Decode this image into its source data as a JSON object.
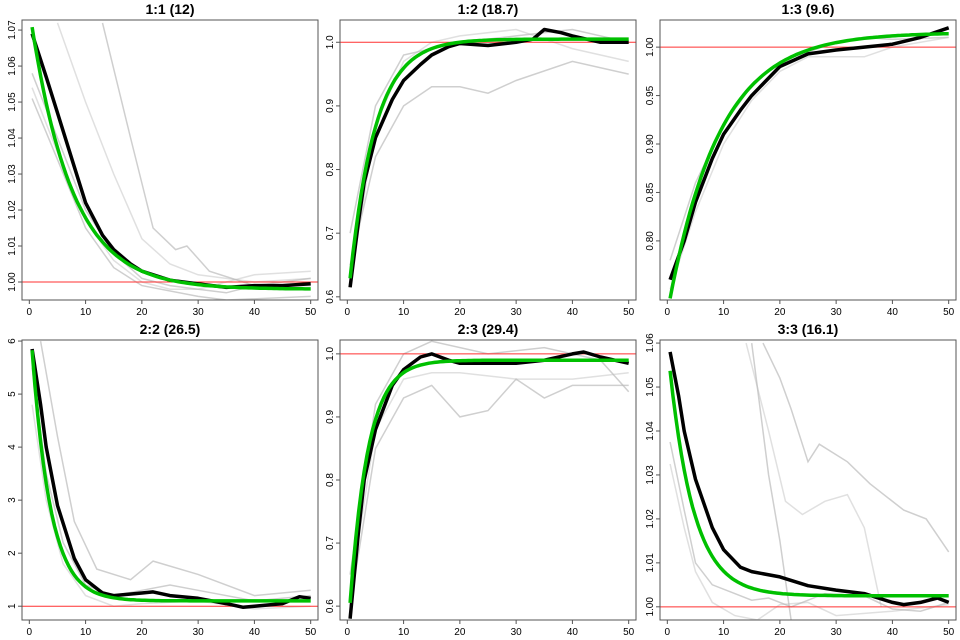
{
  "chart_data": [
    {
      "type": "line",
      "title": "1:1 (12)",
      "xlim": [
        -1.3,
        51.3
      ],
      "ylim": [
        0.995,
        1.0728
      ],
      "xticks": [
        0,
        10,
        20,
        30,
        40,
        50
      ],
      "yticks": [
        "1.00",
        "1.01",
        "1.02",
        "1.03",
        "1.04",
        "1.05",
        "1.06",
        "1.07"
      ],
      "reference": 1.0,
      "observed": [
        [
          0.5,
          1.069
        ],
        [
          3,
          1.057
        ],
        [
          5,
          1.047
        ],
        [
          8,
          1.032
        ],
        [
          10,
          1.022
        ],
        [
          13,
          1.013
        ],
        [
          15,
          1.009
        ],
        [
          18,
          1.005
        ],
        [
          20,
          1.003
        ],
        [
          25,
          1.0005
        ],
        [
          30,
          0.9995
        ],
        [
          35,
          0.9985
        ],
        [
          40,
          0.999
        ],
        [
          45,
          0.999
        ],
        [
          50,
          0.9995
        ]
      ],
      "fit": {
        "asymptote": 0.998,
        "amplitude": 0.078,
        "tau": 7.3
      },
      "replicates": [
        [
          [
            0.5,
            1.058
          ],
          [
            5,
            1.04
          ],
          [
            10,
            1.02
          ],
          [
            15,
            1.008
          ],
          [
            20,
            1.001
          ],
          [
            25,
            0.999
          ],
          [
            30,
            0.998
          ],
          [
            35,
            0.997
          ],
          [
            40,
            0.999
          ],
          [
            50,
            1.001
          ]
        ],
        [
          [
            0.5,
            1.054
          ],
          [
            5,
            1.036
          ],
          [
            10,
            1.017
          ],
          [
            15,
            1.006
          ],
          [
            20,
            1.0
          ],
          [
            25,
            0.998
          ],
          [
            30,
            0.998
          ],
          [
            40,
            1.002
          ],
          [
            50,
            1.003
          ]
        ],
        [
          [
            0.5,
            1.051
          ],
          [
            5,
            1.034
          ],
          [
            10,
            1.015
          ],
          [
            15,
            1.004
          ],
          [
            20,
            0.999
          ],
          [
            30,
            0.996
          ],
          [
            35,
            0.995
          ],
          [
            50,
            0.996
          ]
        ],
        [
          [
            5,
            1.072
          ],
          [
            10,
            1.05
          ],
          [
            15,
            1.03
          ],
          [
            20,
            1.012
          ],
          [
            25,
            1.005
          ],
          [
            30,
            1.002
          ],
          [
            40,
            1.0
          ],
          [
            50,
            1.001
          ]
        ],
        [
          [
            13,
            1.072
          ],
          [
            18,
            1.04
          ],
          [
            22,
            1.015
          ],
          [
            26,
            1.009
          ],
          [
            28,
            1.01
          ],
          [
            32,
            1.003
          ],
          [
            40,
            0.999
          ],
          [
            50,
            0.999
          ]
        ]
      ]
    },
    {
      "type": "line",
      "title": "1:2 (18.7)",
      "xlim": [
        -1.3,
        51.3
      ],
      "ylim": [
        0.595,
        1.035
      ],
      "xticks": [
        0,
        10,
        20,
        30,
        40,
        50
      ],
      "yticks": [
        "0.6",
        "0.7",
        "0.8",
        "0.9",
        "1.0"
      ],
      "reference": 1.0,
      "observed": [
        [
          0.5,
          0.615
        ],
        [
          2,
          0.72
        ],
        [
          3,
          0.78
        ],
        [
          5,
          0.85
        ],
        [
          8,
          0.91
        ],
        [
          10,
          0.94
        ],
        [
          13,
          0.965
        ],
        [
          15,
          0.98
        ],
        [
          18,
          0.993
        ],
        [
          20,
          0.998
        ],
        [
          25,
          0.995
        ],
        [
          30,
          1.0
        ],
        [
          33,
          1.005
        ],
        [
          35,
          1.02
        ],
        [
          38,
          1.015
        ],
        [
          40,
          1.01
        ],
        [
          45,
          1.0
        ],
        [
          50,
          1.0
        ]
      ],
      "fit": {
        "asymptote": 1.005,
        "amplitude": -0.42,
        "tau": 4.5
      },
      "replicates": [
        [
          [
            0.5,
            0.65
          ],
          [
            5,
            0.82
          ],
          [
            10,
            0.9
          ],
          [
            15,
            0.93
          ],
          [
            20,
            0.93
          ],
          [
            25,
            0.92
          ],
          [
            30,
            0.94
          ],
          [
            40,
            0.97
          ],
          [
            50,
            0.95
          ]
        ],
        [
          [
            0.5,
            0.62
          ],
          [
            5,
            0.87
          ],
          [
            10,
            0.97
          ],
          [
            15,
            1.0
          ],
          [
            20,
            1.01
          ],
          [
            30,
            1.02
          ],
          [
            40,
            0.99
          ],
          [
            50,
            0.97
          ]
        ],
        [
          [
            0.5,
            0.7
          ],
          [
            5,
            0.9
          ],
          [
            10,
            0.98
          ],
          [
            20,
            1.0
          ],
          [
            30,
            1.01
          ],
          [
            40,
            1.02
          ],
          [
            50,
            1.0
          ]
        ]
      ]
    },
    {
      "type": "line",
      "title": "1:3 (9.6)",
      "xlim": [
        -1.3,
        51.3
      ],
      "ylim": [
        0.739,
        1.028
      ],
      "xticks": [
        0,
        10,
        20,
        30,
        40,
        50
      ],
      "yticks": [
        "0.80",
        "0.85",
        "0.90",
        "0.95",
        "1.00"
      ],
      "reference": 1.0,
      "observed": [
        [
          0.5,
          0.76
        ],
        [
          3,
          0.8
        ],
        [
          5,
          0.84
        ],
        [
          8,
          0.885
        ],
        [
          10,
          0.91
        ],
        [
          13,
          0.935
        ],
        [
          15,
          0.95
        ],
        [
          18,
          0.968
        ],
        [
          20,
          0.98
        ],
        [
          25,
          0.993
        ],
        [
          30,
          0.997
        ],
        [
          35,
          1.0
        ],
        [
          40,
          1.003
        ],
        [
          45,
          1.01
        ],
        [
          50,
          1.02
        ]
      ],
      "fit": {
        "asymptote": 1.015,
        "amplitude": -0.29,
        "tau": 9
      },
      "replicates": [
        [
          [
            0.5,
            0.78
          ],
          [
            5,
            0.86
          ],
          [
            10,
            0.92
          ],
          [
            15,
            0.96
          ],
          [
            20,
            0.985
          ],
          [
            25,
            0.995
          ],
          [
            30,
            1.005
          ],
          [
            35,
            1.01
          ],
          [
            40,
            1.008
          ],
          [
            50,
            1.01
          ]
        ],
        [
          [
            0.5,
            0.75
          ],
          [
            5,
            0.83
          ],
          [
            10,
            0.9
          ],
          [
            15,
            0.945
          ],
          [
            20,
            0.975
          ],
          [
            25,
            0.99
          ],
          [
            30,
            0.99
          ],
          [
            35,
            0.99
          ],
          [
            40,
            1.0
          ],
          [
            50,
            1.01
          ]
        ]
      ]
    },
    {
      "type": "line",
      "title": "2:2 (26.5)",
      "xlim": [
        -1.3,
        51.3
      ],
      "ylim": [
        0.74,
        6.02
      ],
      "xticks": [
        0,
        10,
        20,
        30,
        40,
        50
      ],
      "yticks": [
        "1",
        "2",
        "3",
        "4",
        "5",
        "6"
      ],
      "reference": 1.0,
      "observed": [
        [
          0.5,
          5.85
        ],
        [
          2,
          4.8
        ],
        [
          3,
          4.0
        ],
        [
          5,
          2.9
        ],
        [
          8,
          1.9
        ],
        [
          10,
          1.5
        ],
        [
          13,
          1.25
        ],
        [
          15,
          1.2
        ],
        [
          20,
          1.25
        ],
        [
          22,
          1.27
        ],
        [
          25,
          1.2
        ],
        [
          30,
          1.15
        ],
        [
          35,
          1.05
        ],
        [
          38,
          0.98
        ],
        [
          40,
          1.0
        ],
        [
          45,
          1.05
        ],
        [
          48,
          1.18
        ],
        [
          50,
          1.15
        ]
      ],
      "fit": {
        "asymptote": 1.1,
        "amplitude": 5.5,
        "tau": 3.3
      },
      "replicates": [
        [
          [
            0.5,
            5.5
          ],
          [
            3,
            3.5
          ],
          [
            6,
            2.2
          ],
          [
            10,
            1.4
          ],
          [
            15,
            1.2
          ],
          [
            20,
            1.3
          ],
          [
            25,
            1.4
          ],
          [
            30,
            1.3
          ],
          [
            40,
            1.1
          ],
          [
            50,
            1.2
          ]
        ],
        [
          [
            0.5,
            4.8
          ],
          [
            3,
            3.0
          ],
          [
            6,
            1.8
          ],
          [
            10,
            1.2
          ],
          [
            15,
            1.0
          ],
          [
            20,
            1.05
          ],
          [
            30,
            1.1
          ],
          [
            40,
            0.95
          ],
          [
            50,
            1.0
          ]
        ],
        [
          [
            2,
            6.0
          ],
          [
            5,
            4.2
          ],
          [
            8,
            2.6
          ],
          [
            12,
            1.7
          ],
          [
            18,
            1.5
          ],
          [
            22,
            1.85
          ],
          [
            30,
            1.6
          ],
          [
            40,
            1.2
          ],
          [
            50,
            1.3
          ]
        ]
      ]
    },
    {
      "type": "line",
      "title": "2:3 (29.4)",
      "xlim": [
        -1.3,
        51.3
      ],
      "ylim": [
        0.578,
        1.022
      ],
      "xticks": [
        0,
        10,
        20,
        30,
        40,
        50
      ],
      "yticks": [
        "0.6",
        "0.7",
        "0.8",
        "0.9",
        "1.0"
      ],
      "reference": 1.0,
      "observed": [
        [
          0.5,
          0.58
        ],
        [
          2,
          0.72
        ],
        [
          3,
          0.8
        ],
        [
          5,
          0.88
        ],
        [
          8,
          0.95
        ],
        [
          10,
          0.975
        ],
        [
          13,
          0.995
        ],
        [
          15,
          1.0
        ],
        [
          18,
          0.99
        ],
        [
          20,
          0.985
        ],
        [
          25,
          0.985
        ],
        [
          30,
          0.985
        ],
        [
          35,
          0.99
        ],
        [
          40,
          1.0
        ],
        [
          42,
          1.003
        ],
        [
          45,
          0.995
        ],
        [
          50,
          0.985
        ]
      ],
      "fit": {
        "asymptote": 0.99,
        "amplitude": -0.45,
        "tau": 3.2
      },
      "replicates": [
        [
          [
            0.5,
            0.6
          ],
          [
            5,
            0.85
          ],
          [
            10,
            0.93
          ],
          [
            15,
            0.95
          ],
          [
            20,
            0.9
          ],
          [
            25,
            0.91
          ],
          [
            30,
            0.96
          ],
          [
            35,
            0.93
          ],
          [
            40,
            0.95
          ],
          [
            50,
            0.95
          ]
        ],
        [
          [
            0.5,
            0.62
          ],
          [
            5,
            0.88
          ],
          [
            10,
            0.96
          ],
          [
            15,
            0.97
          ],
          [
            20,
            0.97
          ],
          [
            30,
            0.96
          ],
          [
            40,
            0.96
          ],
          [
            50,
            0.97
          ]
        ],
        [
          [
            0.5,
            0.65
          ],
          [
            5,
            0.92
          ],
          [
            10,
            1.0
          ],
          [
            15,
            1.02
          ],
          [
            25,
            1.0
          ],
          [
            35,
            1.01
          ],
          [
            45,
            0.99
          ],
          [
            50,
            0.94
          ]
        ]
      ]
    },
    {
      "type": "line",
      "title": "3:3 (16.1)",
      "xlim": [
        -1.3,
        51.3
      ],
      "ylim": [
        0.997,
        1.0607
      ],
      "xticks": [
        0,
        10,
        20,
        30,
        40,
        50
      ],
      "yticks": [
        "1.00",
        "1.01",
        "1.02",
        "1.03",
        "1.04",
        "1.05",
        "1.06"
      ],
      "reference": 1.0,
      "observed": [
        [
          0.5,
          1.058
        ],
        [
          2,
          1.048
        ],
        [
          3,
          1.04
        ],
        [
          5,
          1.029
        ],
        [
          8,
          1.018
        ],
        [
          10,
          1.013
        ],
        [
          13,
          1.009
        ],
        [
          15,
          1.008
        ],
        [
          20,
          1.0068
        ],
        [
          25,
          1.0048
        ],
        [
          30,
          1.0038
        ],
        [
          35,
          1.003
        ],
        [
          40,
          1.001
        ],
        [
          42,
          1.0005
        ],
        [
          45,
          1.001
        ],
        [
          48,
          1.002
        ],
        [
          50,
          1.001
        ]
      ],
      "fit": {
        "asymptote": 1.0025,
        "amplitude": 0.0575,
        "tau": 4.3
      },
      "replicates": [
        [
          [
            0.5,
            1.0375
          ],
          [
            3,
            1.022
          ],
          [
            5,
            1.01
          ],
          [
            8,
            1.005
          ],
          [
            12,
            1.003
          ],
          [
            15,
            1.0015
          ],
          [
            18,
            1.002
          ],
          [
            22,
            1.0
          ],
          [
            28,
            1.003
          ],
          [
            35,
            1.0025
          ],
          [
            40,
            0.9995
          ],
          [
            45,
            0.999
          ],
          [
            50,
            1.001
          ]
        ],
        [
          [
            0.5,
            1.0325
          ],
          [
            3,
            1.018
          ],
          [
            5,
            1.008
          ],
          [
            8,
            1.001
          ],
          [
            12,
            0.998
          ],
          [
            16,
            0.997
          ],
          [
            20,
            1.0005
          ],
          [
            25,
            1.001
          ],
          [
            30,
            0.998
          ],
          [
            40,
            0.999
          ],
          [
            50,
            1.0005
          ]
        ],
        [
          [
            17,
            1.06
          ],
          [
            20,
            1.052
          ],
          [
            22,
            1.045
          ],
          [
            25,
            1.033
          ],
          [
            27,
            1.037
          ],
          [
            32,
            1.033
          ],
          [
            36,
            1.028
          ],
          [
            42,
            1.022
          ],
          [
            46,
            1.02
          ],
          [
            50,
            1.0125
          ]
        ],
        [
          [
            14,
            1.06
          ],
          [
            18,
            1.04
          ],
          [
            21,
            1.024
          ],
          [
            24,
            1.021
          ],
          [
            28,
            1.024
          ],
          [
            32,
            1.0255
          ],
          [
            35,
            1.018
          ],
          [
            38,
            1.0
          ]
        ],
        [
          [
            15,
            1.06
          ],
          [
            18,
            1.03
          ],
          [
            20,
            1.015
          ],
          [
            22,
            0.997
          ]
        ]
      ]
    }
  ]
}
